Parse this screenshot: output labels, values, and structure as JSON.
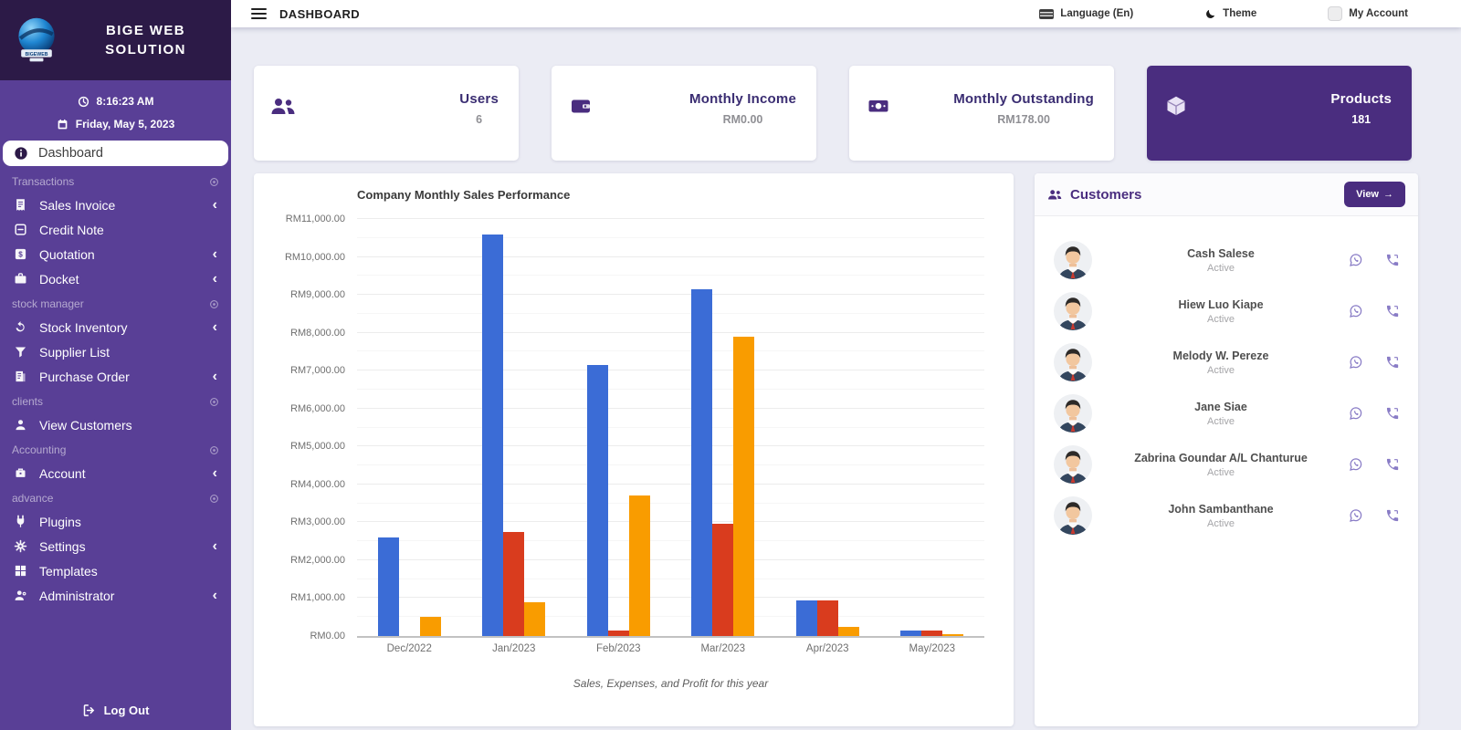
{
  "brand": {
    "line1": "BIGE WEB",
    "line2": "SOLUTION"
  },
  "sidebar": {
    "time": "8:16:23 AM",
    "date": "Friday, May 5, 2023",
    "active_item": {
      "label": "Dashboard",
      "icon": "info"
    },
    "sections": [
      {
        "label": "Transactions",
        "items": [
          {
            "label": "Sales Invoice",
            "icon": "invoice",
            "expandable": true
          },
          {
            "label": "Credit Note",
            "icon": "credit-note",
            "expandable": false
          },
          {
            "label": "Quotation",
            "icon": "quotation",
            "expandable": true
          },
          {
            "label": "Docket",
            "icon": "docket",
            "expandable": true
          }
        ]
      },
      {
        "label": "stock manager",
        "items": [
          {
            "label": "Stock Inventory",
            "icon": "stock",
            "expandable": true
          },
          {
            "label": "Supplier List",
            "icon": "supplier",
            "expandable": false
          },
          {
            "label": "Purchase Order",
            "icon": "purchase",
            "expandable": true
          }
        ]
      },
      {
        "label": "clients",
        "items": [
          {
            "label": "View Customers",
            "icon": "person",
            "expandable": false
          }
        ]
      },
      {
        "label": "Accounting",
        "items": [
          {
            "label": "Account",
            "icon": "bank",
            "expandable": true
          }
        ]
      },
      {
        "label": "advance",
        "items": [
          {
            "label": "Plugins",
            "icon": "plug",
            "expandable": false
          },
          {
            "label": "Settings",
            "icon": "gear",
            "expandable": true
          },
          {
            "label": "Templates",
            "icon": "grid",
            "expandable": false
          },
          {
            "label": "Administrator",
            "icon": "admin",
            "expandable": true
          }
        ]
      }
    ],
    "logout_label": "Log Out"
  },
  "topbar": {
    "title": "DASHBOARD",
    "language_label": "Language (En)",
    "theme_label": "Theme",
    "account_label": "My Account"
  },
  "stats": [
    {
      "title": "Users",
      "value": "6",
      "icon": "users",
      "highlight": false
    },
    {
      "title": "Monthly Income",
      "value": "RM0.00",
      "icon": "wallet",
      "highlight": false
    },
    {
      "title": "Monthly Outstanding",
      "value": "RM178.00",
      "icon": "cash",
      "highlight": false
    },
    {
      "title": "Products",
      "value": "181",
      "icon": "cube",
      "highlight": true
    }
  ],
  "chart_data": {
    "type": "bar",
    "title": "Company Monthly Sales Performance",
    "caption": "Sales, Expenses, and Profit for this year",
    "categories": [
      "Dec/2022",
      "Jan/2023",
      "Feb/2023",
      "Mar/2023",
      "Apr/2023",
      "May/2023"
    ],
    "series": [
      {
        "name": "Sales",
        "color": "#3b6cd6",
        "values": [
          2600,
          10600,
          7150,
          9150,
          950,
          150
        ]
      },
      {
        "name": "Expenses",
        "color": "#d93c1e",
        "values": [
          0,
          2750,
          150,
          2950,
          950,
          150
        ]
      },
      {
        "name": "Profit",
        "color": "#f99c00",
        "values": [
          500,
          900,
          3700,
          7900,
          250,
          60
        ]
      }
    ],
    "ylim": [
      0,
      11000
    ],
    "ytick_step": 1000,
    "ytick_minor": 500,
    "ytick_prefix": "RM",
    "ytick_suffix": ".00",
    "grid": true,
    "legend": "none"
  },
  "customers": {
    "title": "Customers",
    "view_button": {
      "label": "View",
      "arrow": "→"
    },
    "rows": [
      {
        "name": "Cash Salese",
        "status": "Active"
      },
      {
        "name": "Hiew Luo Kiape",
        "status": "Active"
      },
      {
        "name": "Melody W. Pereze",
        "status": "Active"
      },
      {
        "name": "Jane Siae",
        "status": "Active"
      },
      {
        "name": "Zabrina Goundar A/L Chanturue",
        "status": "Active"
      },
      {
        "name": "John Sambanthane",
        "status": "Active"
      }
    ]
  },
  "colors": {
    "accent": "#4a2d7f",
    "sidebar": "#593f96",
    "sidebar_header": "#2c1a47",
    "content_bg": "#ebecf4"
  }
}
